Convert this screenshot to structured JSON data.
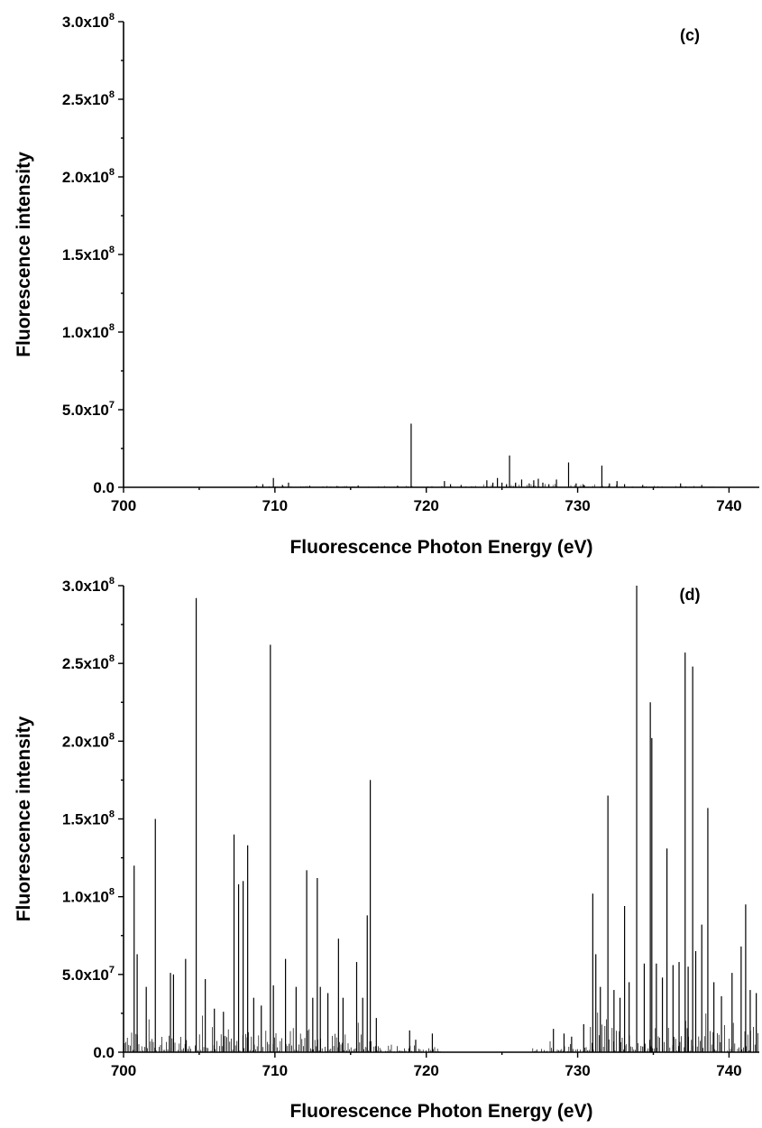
{
  "chart_data": [
    {
      "type": "bar",
      "panel_label": "(c)",
      "xlabel": "Fluorescence Photon Energy (eV)",
      "ylabel": "Fluorescence intensity",
      "xlim": [
        700,
        742
      ],
      "ylim": [
        0,
        300000000
      ],
      "x_ticks": [
        "700",
        "710",
        "720",
        "730",
        "740"
      ],
      "y_ticks": [
        {
          "mantissa": "0.0",
          "exp": ""
        },
        {
          "mantissa": "5.0x10",
          "exp": "7"
        },
        {
          "mantissa": "1.0x10",
          "exp": "8"
        },
        {
          "mantissa": "1.5x10",
          "exp": "8"
        },
        {
          "mantissa": "2.0x10",
          "exp": "8"
        },
        {
          "mantissa": "2.5x10",
          "exp": "8"
        },
        {
          "mantissa": "3.0x10",
          "exp": "8"
        }
      ],
      "grid": false,
      "x": [
        708.8,
        709.2,
        709.9,
        710.5,
        710.9,
        712.3,
        714.1,
        715.5,
        718.1,
        719.0,
        721.2,
        721.6,
        722.3,
        724.0,
        724.4,
        724.7,
        725.0,
        725.3,
        725.5,
        725.9,
        726.3,
        726.8,
        727.1,
        727.4,
        727.7,
        728.1,
        728.6,
        729.4,
        729.9,
        730.4,
        731.6,
        732.1,
        732.6,
        733.1,
        734.3,
        736.8,
        738.2
      ],
      "values": [
        1000000,
        2000000,
        6000000,
        1500000,
        3000000,
        1000000,
        800000,
        1200000,
        1000000,
        41000000,
        4000000,
        2000000,
        1500000,
        4500000,
        3000000,
        6000000,
        3000000,
        2000000,
        20500000,
        3000000,
        5000000,
        2500000,
        4500000,
        5500000,
        3000000,
        2000000,
        5000000,
        16000000,
        2500000,
        1500000,
        14000000,
        2500000,
        4000000,
        2000000,
        1500000,
        2500000,
        1500000
      ]
    },
    {
      "type": "bar",
      "panel_label": "(d)",
      "xlabel": "Fluorescence Photon Energy (eV)",
      "ylabel": "Fluorescence intensity",
      "xlim": [
        700,
        742
      ],
      "ylim": [
        0,
        300000000
      ],
      "x_ticks": [
        "700",
        "710",
        "720",
        "730",
        "740"
      ],
      "y_ticks": [
        {
          "mantissa": "0.0",
          "exp": ""
        },
        {
          "mantissa": "5.0x10",
          "exp": "7"
        },
        {
          "mantissa": "1.0x10",
          "exp": "8"
        },
        {
          "mantissa": "1.5x10",
          "exp": "8"
        },
        {
          "mantissa": "2.0x10",
          "exp": "8"
        },
        {
          "mantissa": "2.5x10",
          "exp": "8"
        },
        {
          "mantissa": "3.0x10",
          "exp": "8"
        }
      ],
      "grid": false,
      "x": [
        700.7,
        700.9,
        701.5,
        702.1,
        703.1,
        703.3,
        704.1,
        704.8,
        705.4,
        706.0,
        706.6,
        707.3,
        707.6,
        707.9,
        708.2,
        708.6,
        709.1,
        709.7,
        709.9,
        710.7,
        711.4,
        712.1,
        712.5,
        712.8,
        713.0,
        713.5,
        714.2,
        714.5,
        715.4,
        715.8,
        716.1,
        716.3,
        716.7,
        718.9,
        719.3,
        720.4,
        728.4,
        729.1,
        729.6,
        730.4,
        731.0,
        731.2,
        731.5,
        732.0,
        732.4,
        732.8,
        733.1,
        733.4,
        733.9,
        734.4,
        734.8,
        734.9,
        735.2,
        735.6,
        735.9,
        736.3,
        736.7,
        737.1,
        737.3,
        737.6,
        737.8,
        738.2,
        738.6,
        739.0,
        739.5,
        740.2,
        740.8,
        741.1,
        741.4,
        741.8
      ],
      "values": [
        120000000,
        63000000,
        42000000,
        150000000,
        51000000,
        50000000,
        60000000,
        292000000,
        47000000,
        28000000,
        26000000,
        140000000,
        108000000,
        110000000,
        133000000,
        35000000,
        30000000,
        262000000,
        43000000,
        60000000,
        42000000,
        117000000,
        35000000,
        112000000,
        42000000,
        38000000,
        73000000,
        35000000,
        58000000,
        35000000,
        88000000,
        175000000,
        22000000,
        14000000,
        8000000,
        12000000,
        15000000,
        12000000,
        10000000,
        18000000,
        102000000,
        63000000,
        42000000,
        165000000,
        40000000,
        35000000,
        94000000,
        45000000,
        300000000,
        57000000,
        225000000,
        202000000,
        57000000,
        48000000,
        131000000,
        56000000,
        58000000,
        257000000,
        55000000,
        248000000,
        65000000,
        82000000,
        157000000,
        45000000,
        36000000,
        51000000,
        68000000,
        95000000,
        40000000,
        38000000
      ]
    }
  ]
}
